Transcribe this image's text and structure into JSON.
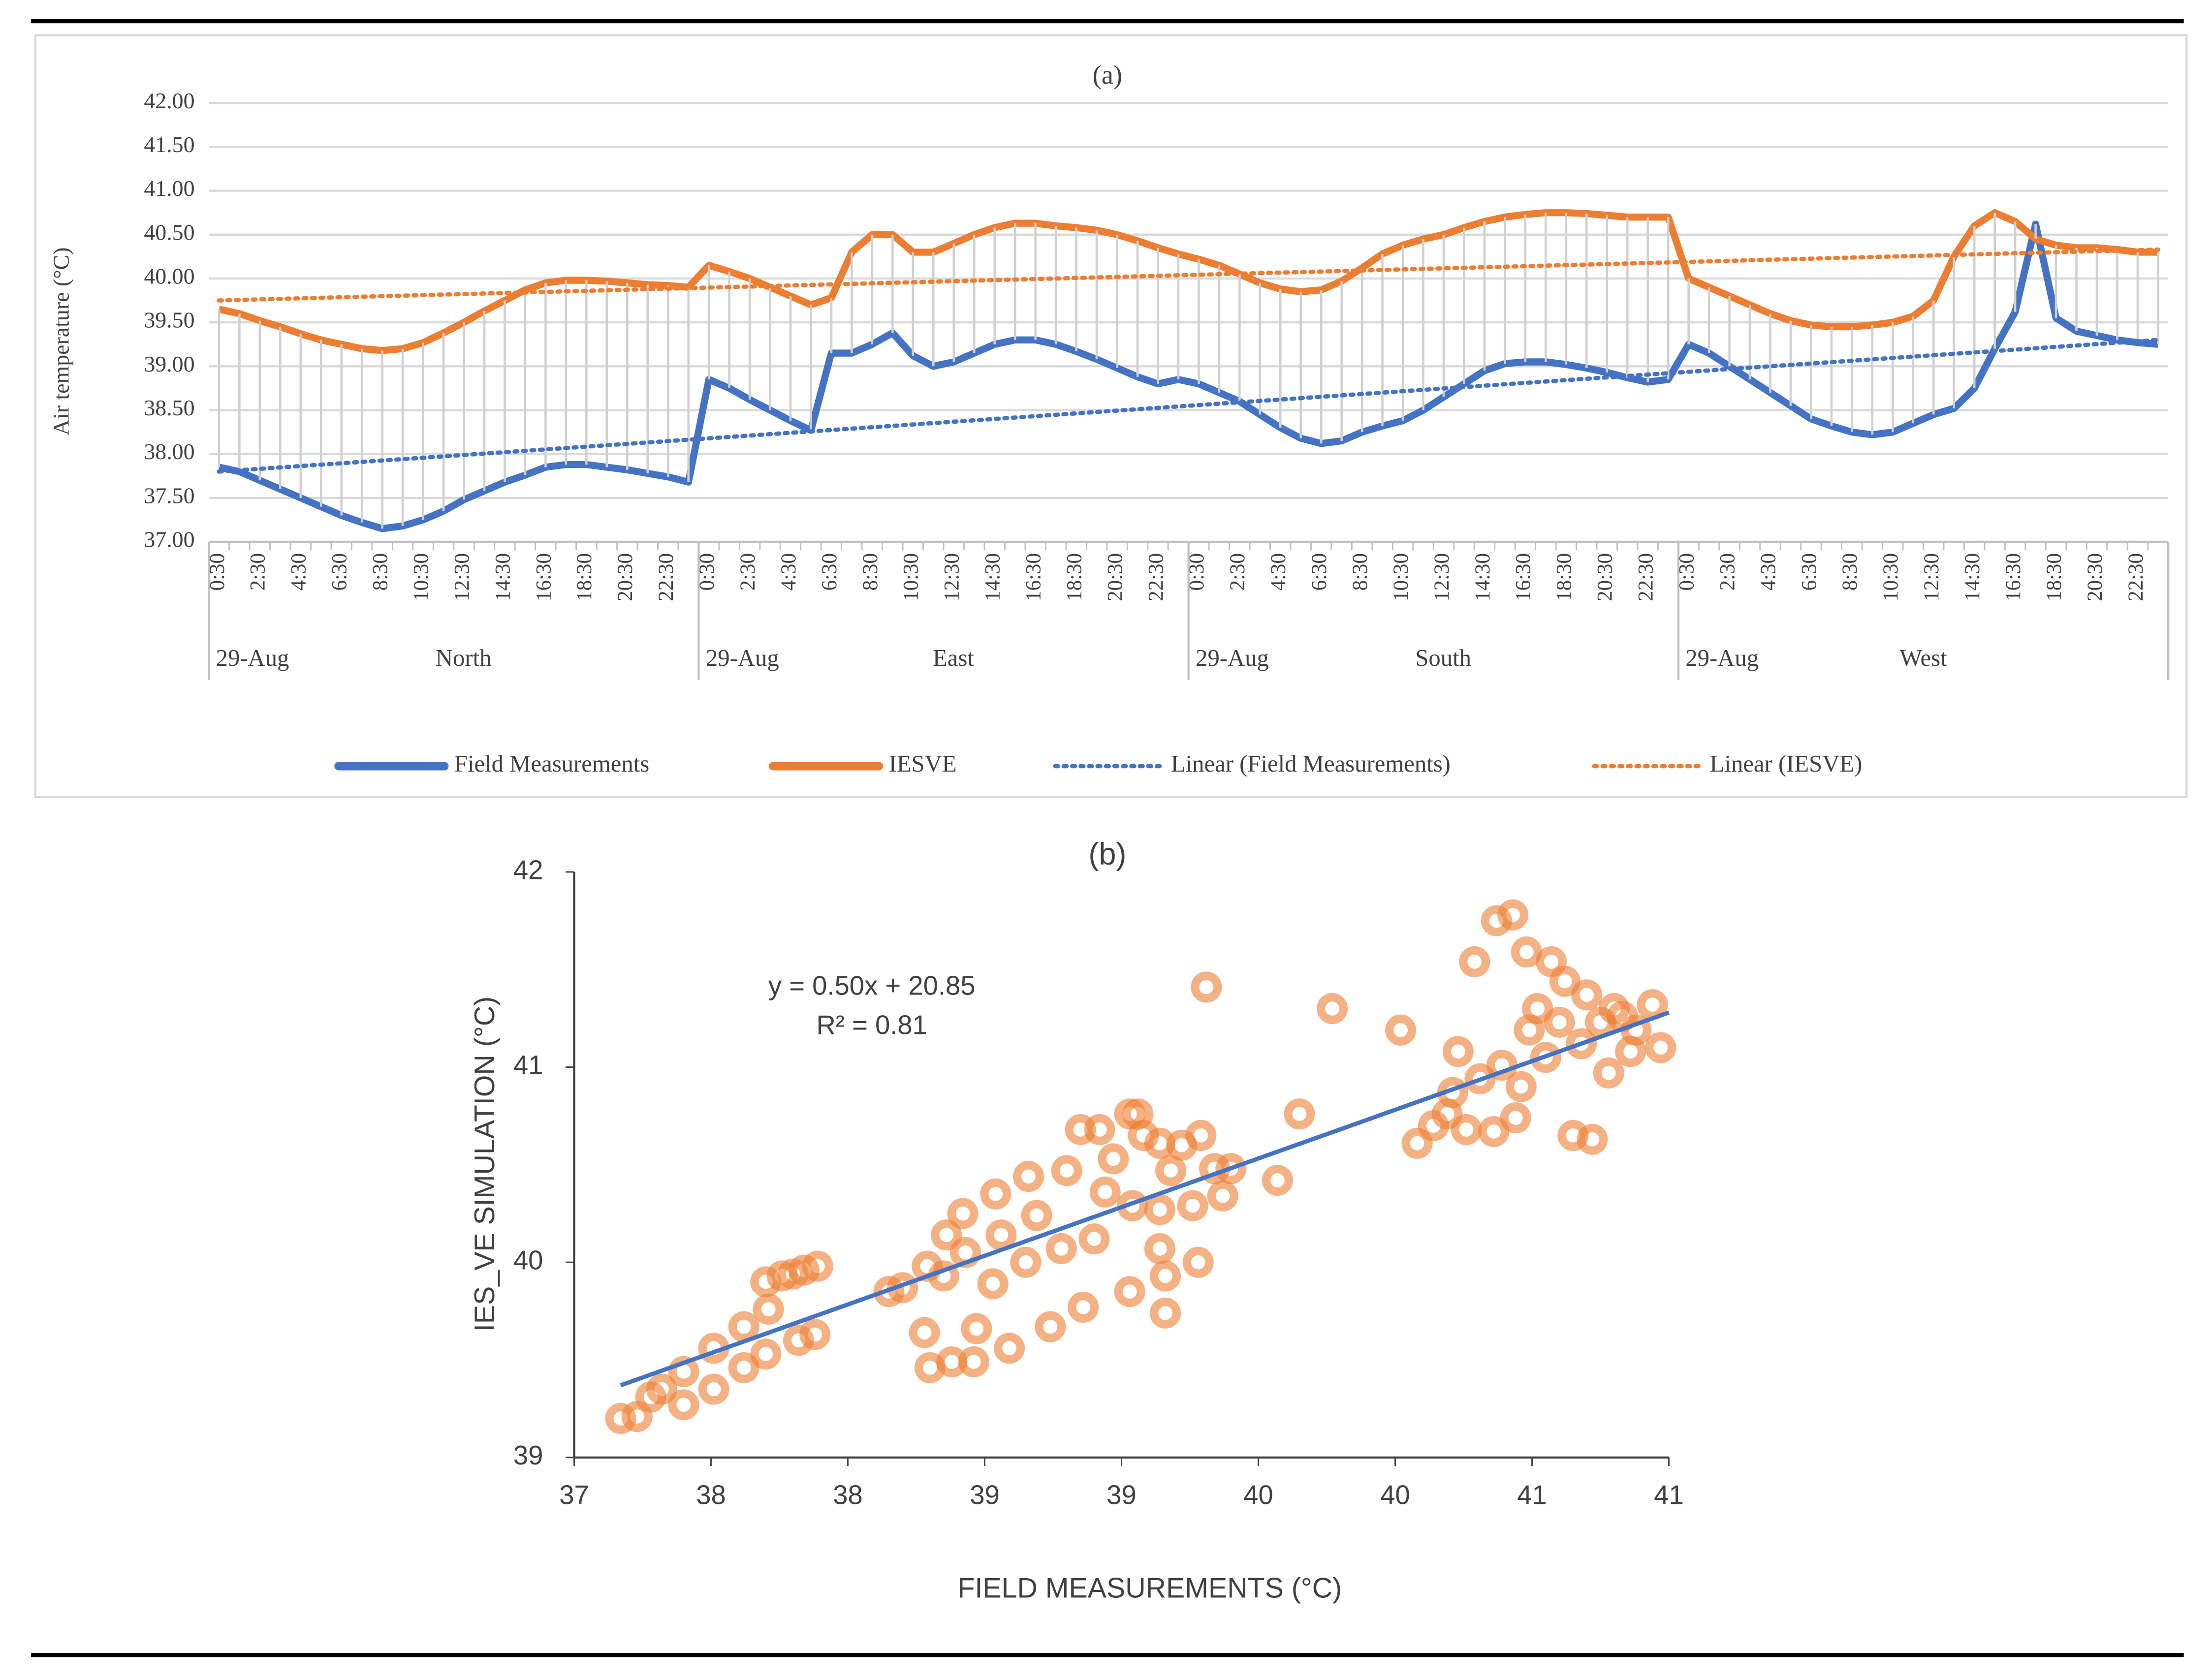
{
  "chart_data": [
    {
      "type": "line",
      "title": "(a)",
      "y_label": "Air temperature (°C)",
      "categories": [
        "0:30",
        null,
        "2:30",
        null,
        "4:30",
        null,
        "6:30",
        null,
        "8:30",
        null,
        "10:30",
        null,
        "12:30",
        null,
        "14:30",
        null,
        "16:30",
        null,
        "18:30",
        null,
        "20:30",
        null,
        "22:30",
        null,
        "0:30",
        null,
        "2:30",
        null,
        "4:30",
        null,
        "6:30",
        null,
        "8:30",
        null,
        "10:30",
        null,
        "12:30",
        null,
        "14:30",
        null,
        "16:30",
        null,
        "18:30",
        null,
        "20:30",
        null,
        "22:30",
        null,
        "0:30",
        null,
        "2:30",
        null,
        "4:30",
        null,
        "6:30",
        null,
        "8:30",
        null,
        "10:30",
        null,
        "12:30",
        null,
        "14:30",
        null,
        "16:30",
        null,
        "18:30",
        null,
        "20:30",
        null,
        "22:30",
        null,
        "0:30",
        null,
        "2:30",
        null,
        "4:30",
        null,
        "6:30",
        null,
        "8:30",
        null,
        "10:30",
        null,
        "12:30",
        null,
        "14:30",
        null,
        "16:30",
        null,
        "18:30",
        null,
        "20:30",
        null,
        "22:30",
        null
      ],
      "groups": [
        {
          "date": "29-Aug",
          "name": "North"
        },
        {
          "date": "29-Aug",
          "name": "East"
        },
        {
          "date": "29-Aug",
          "name": "South"
        },
        {
          "date": "29-Aug",
          "name": "West"
        }
      ],
      "series": [
        {
          "name": "Field Measurements",
          "color": "#4472c4",
          "values": [
            37.85,
            37.8,
            37.7,
            37.6,
            37.5,
            37.4,
            37.3,
            37.22,
            37.15,
            37.18,
            37.25,
            37.35,
            37.48,
            37.58,
            37.68,
            37.76,
            37.85,
            37.88,
            37.88,
            37.85,
            37.82,
            37.78,
            37.74,
            37.68,
            38.85,
            38.75,
            38.62,
            38.5,
            38.38,
            38.27,
            39.15,
            39.15,
            39.25,
            39.38,
            39.12,
            39.0,
            39.05,
            39.15,
            39.25,
            39.3,
            39.3,
            39.25,
            39.17,
            39.08,
            38.98,
            38.88,
            38.8,
            38.85,
            38.8,
            38.7,
            38.6,
            38.45,
            38.3,
            38.18,
            38.12,
            38.15,
            38.25,
            38.32,
            38.38,
            38.5,
            38.65,
            38.8,
            38.95,
            39.03,
            39.05,
            39.05,
            39.02,
            38.98,
            38.93,
            38.87,
            38.82,
            38.85,
            39.25,
            39.15,
            39.0,
            38.85,
            38.7,
            38.55,
            38.4,
            38.32,
            38.25,
            38.22,
            38.25,
            38.35,
            38.45,
            38.52,
            38.75,
            39.2,
            39.62,
            40.62,
            39.55,
            39.4,
            39.35,
            39.3,
            39.27,
            39.25
          ]
        },
        {
          "name": "IESVE",
          "color": "#ed7d31",
          "values": [
            39.65,
            39.6,
            39.52,
            39.45,
            39.37,
            39.3,
            39.25,
            39.2,
            39.18,
            39.2,
            39.27,
            39.38,
            39.5,
            39.63,
            39.75,
            39.87,
            39.95,
            39.98,
            39.98,
            39.97,
            39.95,
            39.93,
            39.92,
            39.9,
            40.15,
            40.08,
            40.0,
            39.9,
            39.8,
            39.7,
            39.78,
            40.3,
            40.5,
            40.5,
            40.3,
            40.3,
            40.4,
            40.5,
            40.58,
            40.63,
            40.63,
            40.6,
            40.58,
            40.55,
            40.5,
            40.43,
            40.35,
            40.28,
            40.22,
            40.15,
            40.05,
            39.95,
            39.88,
            39.85,
            39.87,
            39.97,
            40.12,
            40.28,
            40.38,
            40.45,
            40.5,
            40.58,
            40.65,
            40.7,
            40.73,
            40.75,
            40.75,
            40.74,
            40.72,
            40.7,
            40.7,
            40.7,
            40.0,
            39.9,
            39.8,
            39.7,
            39.6,
            39.52,
            39.47,
            39.45,
            39.45,
            39.47,
            39.5,
            39.57,
            39.75,
            40.25,
            40.6,
            40.75,
            40.65,
            40.45,
            40.38,
            40.35,
            40.35,
            40.33,
            40.3,
            40.3
          ]
        }
      ],
      "trendlines": [
        {
          "name": "Linear (Field Measurements)",
          "color": "#4472c4",
          "start": 37.8,
          "end": 39.3
        },
        {
          "name": "Linear (IESVE)",
          "color": "#ed7d31",
          "start": 39.75,
          "end": 40.33
        }
      ],
      "ylim": [
        37,
        42
      ],
      "yticks": [
        {
          "value": 37,
          "label": "37.00"
        },
        {
          "value": 37.5,
          "label": "37.50"
        },
        {
          "value": 38,
          "label": "38.00"
        },
        {
          "value": 38.5,
          "label": "38.50"
        },
        {
          "value": 39,
          "label": "39.00"
        },
        {
          "value": 39.5,
          "label": "39.50"
        },
        {
          "value": 40,
          "label": "40.00"
        },
        {
          "value": 40.5,
          "label": "40.50"
        },
        {
          "value": 41,
          "label": "41.00"
        },
        {
          "value": 41.5,
          "label": "41.50"
        },
        {
          "value": 42,
          "label": "42.00"
        }
      ],
      "grid": true,
      "legend": "bottom"
    },
    {
      "type": "scatter",
      "title": "(b)",
      "x_label": "FIELD MEASUREMENTS (°C)",
      "y_label": "IES_VE SIMULATION (°C)",
      "annotations": [
        "y = 0.50x + 20.85",
        "R² = 0.81"
      ],
      "color": "#ed7d31",
      "x": [
        37.17,
        37.23,
        37.28,
        37.32,
        37.4,
        37.4,
        37.51,
        37.51,
        37.62,
        37.62,
        37.7,
        37.7,
        37.71,
        37.76,
        37.8,
        37.82,
        37.84,
        37.88,
        37.89,
        38.15,
        38.2,
        38.28,
        38.29,
        38.3,
        38.35,
        38.36,
        38.38,
        38.42,
        38.43,
        38.46,
        38.47,
        38.53,
        38.54,
        38.56,
        38.59,
        38.65,
        38.66,
        38.69,
        38.74,
        38.78,
        38.8,
        38.85,
        38.86,
        38.9,
        38.92,
        38.94,
        38.97,
        39.03,
        39.03,
        39.04,
        39.06,
        39.08,
        39.14,
        39.14,
        39.14,
        39.16,
        39.16,
        39.18,
        39.22,
        39.26,
        39.28,
        39.29,
        39.31,
        39.34,
        39.37,
        39.4,
        39.57,
        39.65,
        39.77,
        40.02,
        40.23,
        40.08,
        40.14,
        40.19,
        40.21,
        40.26,
        40.29,
        40.31,
        40.36,
        40.37,
        40.39,
        40.43,
        40.44,
        40.46,
        40.48,
        40.49,
        40.52,
        40.55,
        40.57,
        40.6,
        40.62,
        40.65,
        40.68,
        40.7,
        40.72,
        40.75,
        40.78,
        40.8,
        40.83,
        40.86,
        40.88,
        40.94,
        40.97
      ],
      "y": [
        39.2,
        39.21,
        39.31,
        39.35,
        39.27,
        39.44,
        39.56,
        39.35,
        39.67,
        39.46,
        39.53,
        39.9,
        39.76,
        39.93,
        39.94,
        39.6,
        39.96,
        39.63,
        39.98,
        39.85,
        39.87,
        39.64,
        39.98,
        39.46,
        39.93,
        40.14,
        39.49,
        40.25,
        40.05,
        39.49,
        39.66,
        39.89,
        40.35,
        40.14,
        39.56,
        40.0,
        40.44,
        40.24,
        39.67,
        40.07,
        40.47,
        40.68,
        39.77,
        40.12,
        40.68,
        40.36,
        40.53,
        39.85,
        40.76,
        40.29,
        40.76,
        40.65,
        40.07,
        40.27,
        40.61,
        39.74,
        39.93,
        40.47,
        40.6,
        40.29,
        40.0,
        40.65,
        41.41,
        40.48,
        40.34,
        40.48,
        40.42,
        40.76,
        41.3,
        41.19,
        41.08,
        40.61,
        40.7,
        40.76,
        40.87,
        40.68,
        41.54,
        40.94,
        40.67,
        41.75,
        41.01,
        41.78,
        40.74,
        40.9,
        41.59,
        41.19,
        41.3,
        41.05,
        41.54,
        41.23,
        41.44,
        40.65,
        41.12,
        41.37,
        40.63,
        41.23,
        40.97,
        41.3,
        41.26,
        41.08,
        41.19,
        41.32,
        41.1
      ],
      "trendline": {
        "color": "#4472c4",
        "x": [
          37.17,
          41.0
        ],
        "y": [
          39.37,
          41.28
        ]
      },
      "xlim": [
        37,
        41
      ],
      "xticks": [
        37,
        {
          "value": 37.5,
          "label": "38"
        },
        38,
        {
          "value": 38.5,
          "label": "39"
        },
        39,
        {
          "value": 39.5,
          "label": "40"
        },
        40,
        {
          "value": 40.5,
          "label": "41"
        },
        41
      ],
      "ylim": [
        39,
        42
      ],
      "yticks": [
        39,
        40,
        41,
        42
      ]
    }
  ]
}
